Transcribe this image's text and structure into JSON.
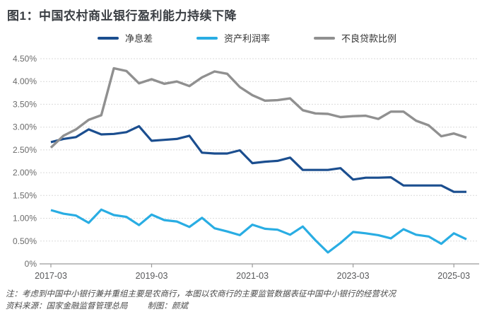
{
  "title": "图1：中国农村商业银行盈利能力持续下降",
  "legend": {
    "items": [
      {
        "label": "净息差"
      },
      {
        "label": "资产利润率"
      },
      {
        "label": "不良贷款比例"
      }
    ]
  },
  "notes": {
    "line1": "注：考虑到中国中小银行兼并重组主要是农商行，本图以农商行的主要监管数据表征中国中小银行的经营状况",
    "source": "资料来源：国家金融监督管理总局",
    "credit": "制图：颜斌"
  },
  "chart_data": {
    "type": "line",
    "unit": "%",
    "x": [
      "2017-03",
      "2017-06",
      "2017-09",
      "2017-12",
      "2018-03",
      "2018-06",
      "2018-09",
      "2018-12",
      "2019-03",
      "2019-06",
      "2019-09",
      "2019-12",
      "2020-03",
      "2020-06",
      "2020-09",
      "2020-12",
      "2021-03",
      "2021-06",
      "2021-09",
      "2021-12",
      "2022-03",
      "2022-06",
      "2022-09",
      "2022-12",
      "2023-03",
      "2023-06",
      "2023-09",
      "2023-12",
      "2024-03",
      "2024-06",
      "2024-09",
      "2024-12",
      "2025-03",
      "2025-06"
    ],
    "x_axis_tick_labels": [
      "2017-03",
      "2019-03",
      "2021-03",
      "2023-03",
      "2025-03"
    ],
    "x_axis_tick_indices": [
      0,
      8,
      16,
      24,
      32
    ],
    "y_axis_ticks": [
      {
        "label": "0%",
        "value": 0
      },
      {
        "label": "0.50%",
        "value": 0.5
      },
      {
        "label": "1.00%",
        "value": 1.0
      },
      {
        "label": "1.50%",
        "value": 1.5
      },
      {
        "label": "2.00%",
        "value": 2.0
      },
      {
        "label": "2.50%",
        "value": 2.5
      },
      {
        "label": "3.00%",
        "value": 3.0
      },
      {
        "label": "3.50%",
        "value": 3.5
      },
      {
        "label": "4.00%",
        "value": 4.0
      },
      {
        "label": "4.50%",
        "value": 4.5
      }
    ],
    "ylim": [
      0,
      4.5
    ],
    "grid": "horizontal-dashed",
    "legend_position": "top-center",
    "series": [
      {
        "name": "净息差",
        "color": "#1B4E8F",
        "values": [
          2.67,
          2.74,
          2.78,
          2.95,
          2.84,
          2.85,
          2.89,
          3.02,
          2.7,
          2.72,
          2.74,
          2.81,
          2.44,
          2.42,
          2.42,
          2.49,
          2.21,
          2.24,
          2.26,
          2.33,
          2.06,
          2.06,
          2.06,
          2.1,
          1.85,
          1.89,
          1.89,
          1.9,
          1.72,
          1.72,
          1.72,
          1.72,
          1.58,
          1.58
        ]
      },
      {
        "name": "资产利润率",
        "color": "#29ADE3",
        "values": [
          1.18,
          1.1,
          1.06,
          0.9,
          1.19,
          1.07,
          1.03,
          0.85,
          1.08,
          0.96,
          0.93,
          0.81,
          1.01,
          0.78,
          0.71,
          0.63,
          0.86,
          0.77,
          0.75,
          0.64,
          0.82,
          0.52,
          0.25,
          0.46,
          0.7,
          0.67,
          0.63,
          0.56,
          0.76,
          0.64,
          0.6,
          0.44,
          0.67,
          0.54
        ]
      },
      {
        "name": "不良贷款比例",
        "color": "#909090",
        "values": [
          2.55,
          2.81,
          2.95,
          3.16,
          3.26,
          4.29,
          4.23,
          3.96,
          4.05,
          3.95,
          4.0,
          3.9,
          4.09,
          4.22,
          4.17,
          3.88,
          3.7,
          3.58,
          3.59,
          3.63,
          3.37,
          3.3,
          3.29,
          3.22,
          3.24,
          3.25,
          3.18,
          3.34,
          3.34,
          3.14,
          3.04,
          2.8,
          2.86,
          2.77
        ]
      }
    ]
  }
}
